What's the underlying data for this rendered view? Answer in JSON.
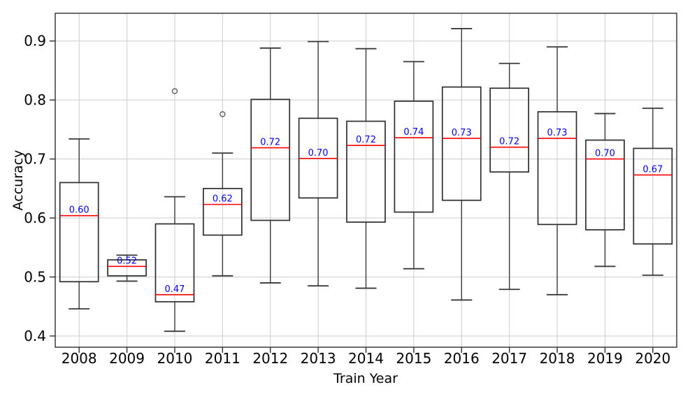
{
  "chart_data": {
    "type": "boxplot",
    "title": "",
    "xlabel": "Train Year",
    "ylabel": "Accuracy",
    "categories": [
      "2008",
      "2009",
      "2010",
      "2011",
      "2012",
      "2013",
      "2014",
      "2015",
      "2016",
      "2017",
      "2018",
      "2019",
      "2020"
    ],
    "y_ticks": [
      0.4,
      0.5,
      0.6,
      0.7,
      0.8,
      0.9
    ],
    "y_tick_labels": [
      "0.4",
      "0.5",
      "0.6",
      "0.7",
      "0.8",
      "0.9"
    ],
    "ylim": [
      0.381,
      0.947
    ],
    "grid": true,
    "legend": "none",
    "colors": {
      "box_edge": "#2e2e2e",
      "whisker": "#3a3a3a",
      "median_line": "#ff0000",
      "median_label": "#0000ff",
      "grid_line": "#cccccc",
      "tick_label": "#000000",
      "background": "#ffffff"
    },
    "series": [
      {
        "label": "2008",
        "whislo": 0.446,
        "q1": 0.492,
        "med": 0.604,
        "q3": 0.66,
        "whishi": 0.734,
        "fliers": [],
        "med_label": "0.60"
      },
      {
        "label": "2009",
        "whislo": 0.493,
        "q1": 0.502,
        "med": 0.518,
        "q3": 0.529,
        "whishi": 0.537,
        "fliers": [],
        "med_label": "0.52"
      },
      {
        "label": "2010",
        "whislo": 0.408,
        "q1": 0.458,
        "med": 0.47,
        "q3": 0.59,
        "whishi": 0.636,
        "fliers": [
          0.815
        ],
        "med_label": "0.47"
      },
      {
        "label": "2011",
        "whislo": 0.502,
        "q1": 0.571,
        "med": 0.623,
        "q3": 0.65,
        "whishi": 0.71,
        "fliers": [
          0.776
        ],
        "med_label": "0.62"
      },
      {
        "label": "2012",
        "whislo": 0.49,
        "q1": 0.596,
        "med": 0.719,
        "q3": 0.801,
        "whishi": 0.888,
        "fliers": [],
        "med_label": "0.72"
      },
      {
        "label": "2013",
        "whislo": 0.485,
        "q1": 0.634,
        "med": 0.701,
        "q3": 0.769,
        "whishi": 0.899,
        "fliers": [],
        "med_label": "0.70"
      },
      {
        "label": "2014",
        "whislo": 0.481,
        "q1": 0.593,
        "med": 0.723,
        "q3": 0.764,
        "whishi": 0.887,
        "fliers": [],
        "med_label": "0.72"
      },
      {
        "label": "2015",
        "whislo": 0.514,
        "q1": 0.61,
        "med": 0.736,
        "q3": 0.798,
        "whishi": 0.865,
        "fliers": [],
        "med_label": "0.74"
      },
      {
        "label": "2016",
        "whislo": 0.461,
        "q1": 0.63,
        "med": 0.735,
        "q3": 0.822,
        "whishi": 0.921,
        "fliers": [],
        "med_label": "0.73"
      },
      {
        "label": "2017",
        "whislo": 0.479,
        "q1": 0.678,
        "med": 0.72,
        "q3": 0.82,
        "whishi": 0.862,
        "fliers": [],
        "med_label": "0.72"
      },
      {
        "label": "2018",
        "whislo": 0.47,
        "q1": 0.589,
        "med": 0.735,
        "q3": 0.78,
        "whishi": 0.89,
        "fliers": [],
        "med_label": "0.73"
      },
      {
        "label": "2019",
        "whislo": 0.518,
        "q1": 0.58,
        "med": 0.7,
        "q3": 0.732,
        "whishi": 0.777,
        "fliers": [],
        "med_label": "0.70"
      },
      {
        "label": "2020",
        "whislo": 0.503,
        "q1": 0.556,
        "med": 0.673,
        "q3": 0.718,
        "whishi": 0.786,
        "fliers": [],
        "med_label": "0.67"
      }
    ]
  }
}
